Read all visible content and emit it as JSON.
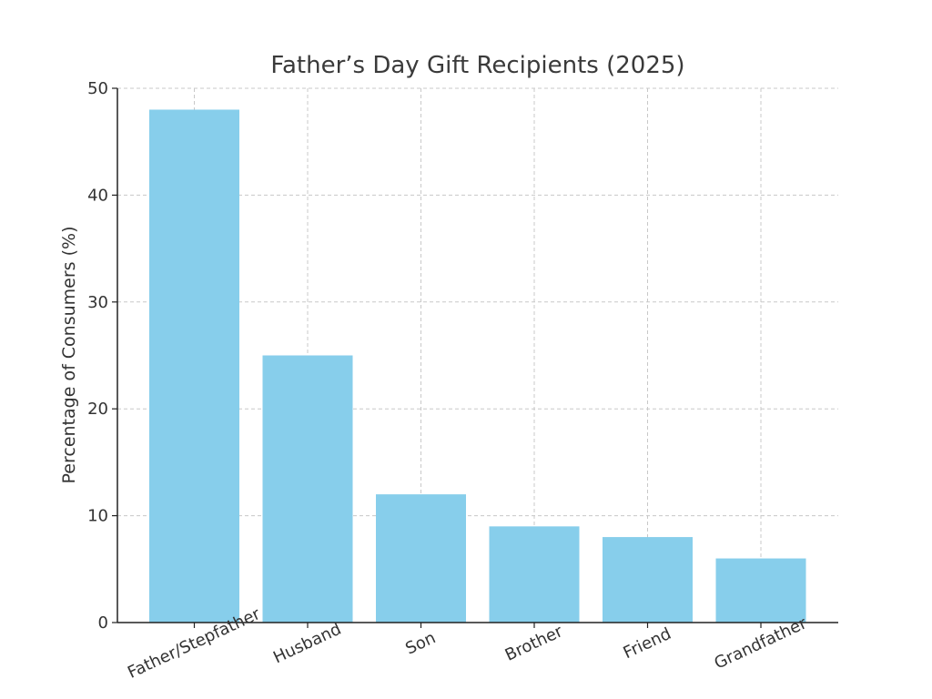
{
  "chart_data": {
    "type": "bar",
    "title": "Father’s Day Gift Recipients (2025)",
    "xlabel": "",
    "ylabel": "Percentage of Consumers (%)",
    "categories": [
      "Father/Stepfather",
      "Husband",
      "Son",
      "Brother",
      "Friend",
      "Grandfather"
    ],
    "values": [
      48,
      25,
      12,
      9,
      8,
      6
    ],
    "ylim": [
      0,
      50
    ],
    "yticks": [
      0,
      10,
      20,
      30,
      40,
      50
    ],
    "bar_color": "#87CEEB",
    "grid": true,
    "legend": "none"
  }
}
